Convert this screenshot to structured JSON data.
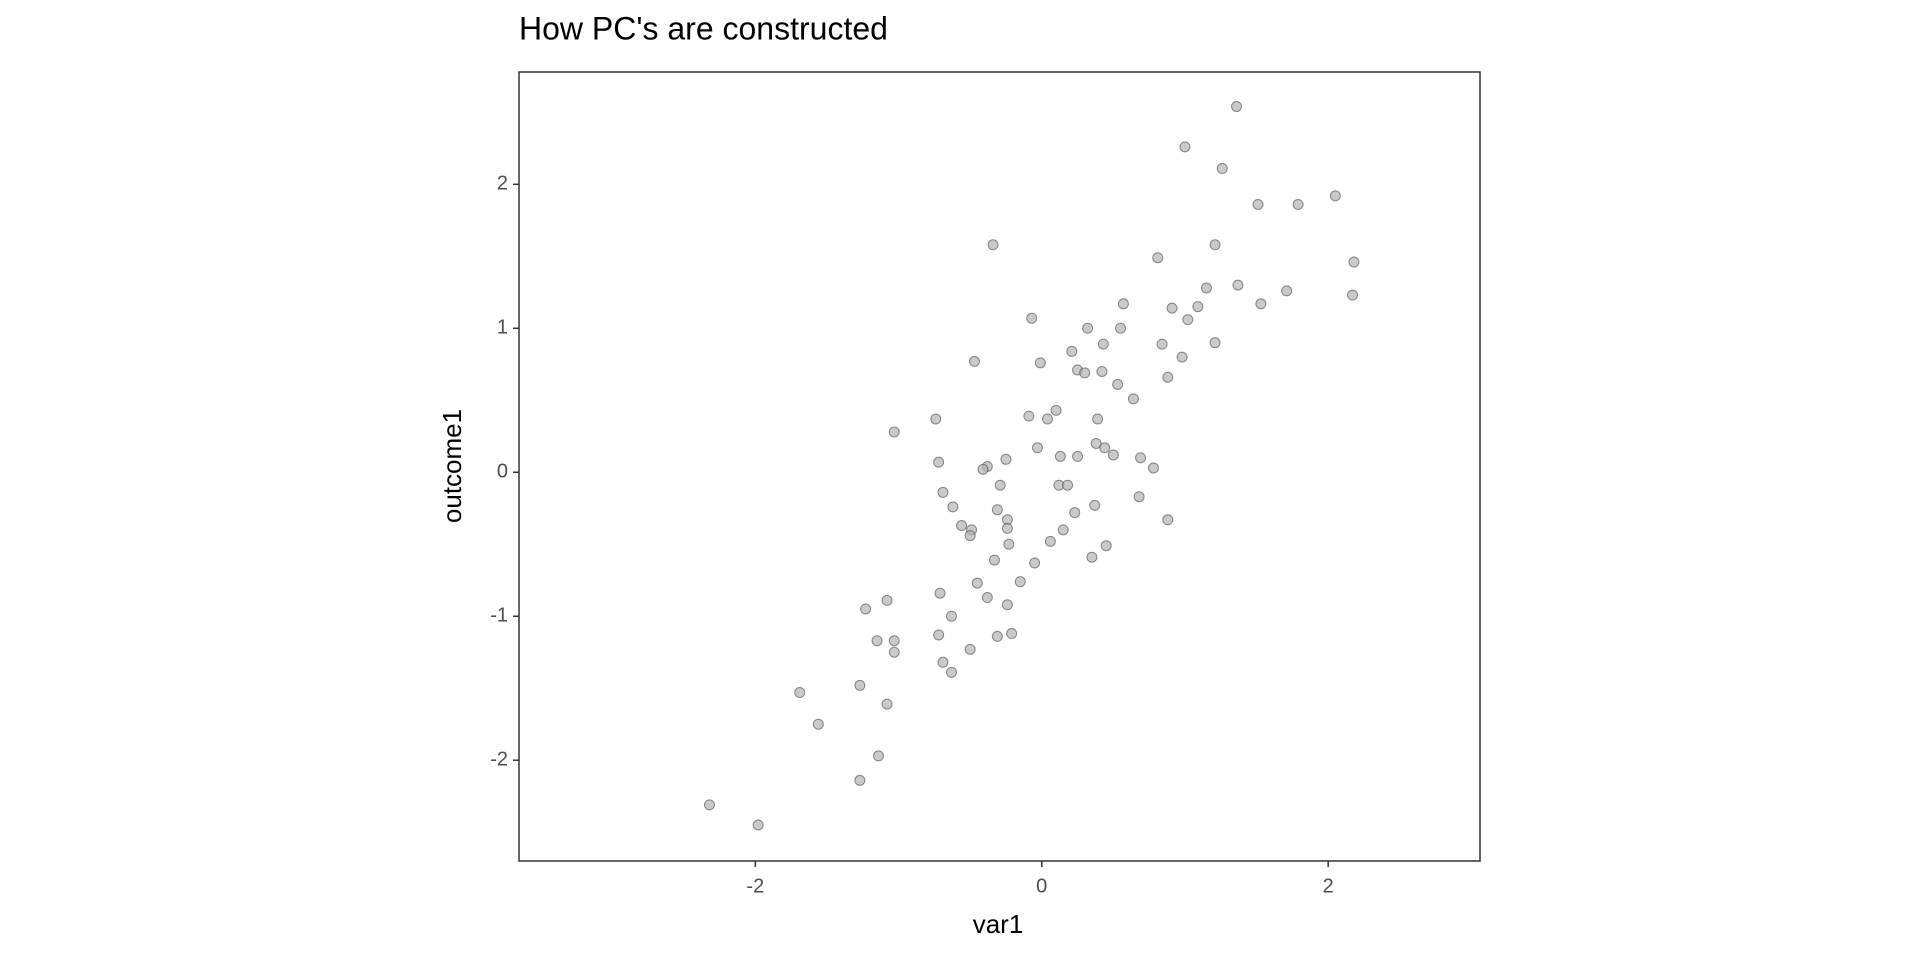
{
  "chart_data": {
    "type": "scatter",
    "title": "How PC's are constructed",
    "x_label": "var1",
    "y_label": "outcome1",
    "x": [
      1.36,
      1.0,
      1.26,
      2.05,
      1.51,
      1.79,
      -0.34,
      1.21,
      0.81,
      2.18,
      1.37,
      1.15,
      1.71,
      2.17,
      0.57,
      1.53,
      1.09,
      0.91,
      -0.07,
      1.02,
      0.32,
      0.55,
      0.84,
      0.43,
      1.21,
      0.21,
      0.98,
      -0.47,
      -0.01,
      0.25,
      0.3,
      0.42,
      0.53,
      0.88,
      0.64,
      0.1,
      -0.09,
      0.04,
      -0.74,
      0.39,
      -1.03,
      -0.03,
      0.38,
      0.44,
      0.5,
      0.13,
      0.25,
      0.69,
      -0.72,
      -0.25,
      -0.38,
      -0.41,
      0.78,
      -0.29,
      0.12,
      0.18,
      -0.69,
      0.68,
      -0.62,
      0.37,
      -0.31,
      0.23,
      0.88,
      -0.24,
      -0.24,
      -0.56,
      -0.49,
      -0.5,
      0.15,
      0.06,
      -0.23,
      0.45,
      0.35,
      -0.33,
      -0.05,
      -0.15,
      -0.45,
      -0.71,
      -0.38,
      -1.08,
      -0.24,
      -1.23,
      -0.63,
      -0.72,
      -0.21,
      -0.31,
      -1.15,
      -1.03,
      -1.03,
      -0.5,
      -0.69,
      -0.63,
      -1.69,
      -1.27,
      -1.08,
      -1.56,
      -1.14,
      -1.27,
      -2.32,
      -1.98
    ],
    "series": [
      {
        "color": "#b3b3b3",
        "values": [
          2.54,
          2.26,
          2.11,
          1.92,
          1.86,
          1.86,
          1.58,
          1.58,
          1.49,
          1.46,
          1.3,
          1.28,
          1.26,
          1.23,
          1.17,
          1.17,
          1.15,
          1.14,
          1.07,
          1.06,
          1.0,
          1.0,
          0.89,
          0.89,
          0.9,
          0.84,
          0.8,
          0.77,
          0.76,
          0.71,
          0.69,
          0.7,
          0.61,
          0.66,
          0.51,
          0.43,
          0.39,
          0.37,
          0.37,
          0.37,
          0.28,
          0.17,
          0.2,
          0.17,
          0.12,
          0.11,
          0.11,
          0.1,
          0.07,
          0.09,
          0.04,
          0.02,
          0.03,
          -0.09,
          -0.09,
          -0.09,
          -0.14,
          -0.17,
          -0.24,
          -0.23,
          -0.26,
          -0.28,
          -0.33,
          -0.33,
          -0.39,
          -0.37,
          -0.4,
          -0.44,
          -0.4,
          -0.48,
          -0.5,
          -0.51,
          -0.59,
          -0.61,
          -0.63,
          -0.76,
          -0.77,
          -0.84,
          -0.87,
          -0.89,
          -0.92,
          -0.95,
          -1.0,
          -1.13,
          -1.12,
          -1.14,
          -1.17,
          -1.17,
          -1.25,
          -1.23,
          -1.32,
          -1.39,
          -1.53,
          -1.48,
          -1.61,
          -1.75,
          -1.97,
          -2.14,
          -2.31,
          -2.45
        ]
      }
    ],
    "xlim": [
      -3.65,
      3.06
    ],
    "ylim": [
      -2.7,
      2.78
    ],
    "xticks": [
      -2,
      0,
      2
    ],
    "yticks": [
      -2,
      -1,
      0,
      1,
      2
    ],
    "grid": false
  }
}
